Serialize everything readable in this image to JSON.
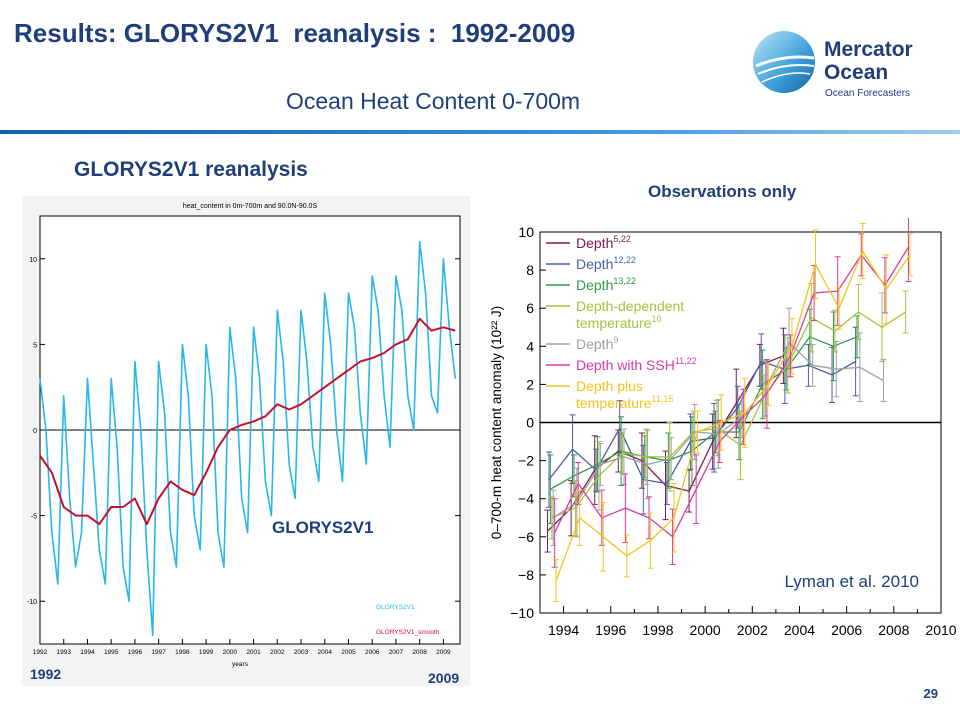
{
  "slide": {
    "title": "Results: GLORYS2V1  reanalysis :  1992-2009",
    "subtitle": "Ocean Heat Content  0-700m",
    "left_heading": "GLORYS2V1 reanalysis",
    "right_heading": "Observations only",
    "year_start": "1992",
    "year_end": "2009",
    "page_number": "29",
    "logo_line1": "Mercator",
    "logo_line2": "Ocean",
    "logo_tagline": "Ocean Forecasters"
  },
  "colors": {
    "title": "#1f3f7a",
    "glorys_raw": "#29b6e8",
    "glorys_smooth": "#c8102e"
  },
  "chart_data": [
    {
      "type": "line",
      "title": "heat_content in 0m-700m and 90.0N-90.0S",
      "xlabel": "years",
      "x_ticks": [
        "1992",
        "1993",
        "1994",
        "1995",
        "1996",
        "1997",
        "1998",
        "1999",
        "2000",
        "2001",
        "2002",
        "2003",
        "2004",
        "2005",
        "2006",
        "2007",
        "2008",
        "2009"
      ],
      "y_ticks": [
        "10",
        "5",
        "0",
        "-5",
        "-10"
      ],
      "xlim": [
        1992,
        2009.7
      ],
      "ylim": [
        -12.5,
        12.5
      ],
      "annotation": "GLORYS2V1",
      "legend": "bottom-right",
      "series": [
        {
          "name": "GLORYS2V1",
          "color": "#29b6e8",
          "x": [
            1992.0,
            1992.25,
            1992.5,
            1992.75,
            1993.0,
            1993.25,
            1993.5,
            1993.75,
            1994.0,
            1994.25,
            1994.5,
            1994.75,
            1995.0,
            1995.25,
            1995.5,
            1995.75,
            1996.0,
            1996.25,
            1996.5,
            1996.75,
            1997.0,
            1997.25,
            1997.5,
            1997.75,
            1998.0,
            1998.25,
            1998.5,
            1998.75,
            1999.0,
            1999.25,
            1999.5,
            1999.75,
            2000.0,
            2000.25,
            2000.5,
            2000.75,
            2001.0,
            2001.25,
            2001.5,
            2001.75,
            2002.0,
            2002.25,
            2002.5,
            2002.75,
            2003.0,
            2003.25,
            2003.5,
            2003.75,
            2004.0,
            2004.25,
            2004.5,
            2004.75,
            2005.0,
            2005.25,
            2005.5,
            2005.75,
            2006.0,
            2006.25,
            2006.5,
            2006.75,
            2007.0,
            2007.25,
            2007.5,
            2007.75,
            2008.0,
            2008.25,
            2008.5,
            2008.75,
            2009.0,
            2009.25,
            2009.5
          ],
          "y": [
            3,
            0,
            -6,
            -9,
            2,
            -4,
            -8,
            -6,
            3,
            -2,
            -7,
            -9,
            3,
            -1,
            -8,
            -10,
            4,
            0,
            -7,
            -12,
            4,
            1,
            -6,
            -8,
            5,
            2,
            -5,
            -7,
            5,
            2,
            -6,
            -8,
            6,
            3,
            -4,
            -6,
            6,
            3,
            -3,
            -5,
            7,
            4,
            -2,
            -4,
            7,
            4,
            -1,
            -3,
            8,
            5,
            0,
            -3,
            8,
            6,
            1,
            -2,
            9,
            7,
            2,
            -1,
            9,
            7,
            2,
            0,
            11,
            8,
            2,
            1,
            10,
            6,
            3
          ]
        },
        {
          "name": "GLORYS2V1_smooth",
          "color": "#c8102e",
          "x": [
            1992.0,
            1992.5,
            1993.0,
            1993.5,
            1994.0,
            1994.5,
            1995.0,
            1995.5,
            1996.0,
            1996.5,
            1997.0,
            1997.5,
            1998.0,
            1998.5,
            1999.0,
            1999.5,
            2000.0,
            2000.5,
            2001.0,
            2001.5,
            2002.0,
            2002.5,
            2003.0,
            2003.5,
            2004.0,
            2004.5,
            2005.0,
            2005.5,
            2006.0,
            2006.5,
            2007.0,
            2007.5,
            2008.0,
            2008.5,
            2009.0,
            2009.5
          ],
          "y": [
            -1.5,
            -2.5,
            -4.5,
            -5,
            -5,
            -5.5,
            -4.5,
            -4.5,
            -4,
            -5.5,
            -4,
            -3,
            -3.5,
            -3.8,
            -2.5,
            -1,
            0,
            0.3,
            0.5,
            0.8,
            1.5,
            1.2,
            1.5,
            2,
            2.5,
            3,
            3.5,
            4,
            4.2,
            4.5,
            5,
            5.3,
            6.5,
            5.8,
            6,
            5.8
          ]
        }
      ]
    },
    {
      "type": "line",
      "title": "",
      "ylabel": "0–700-m heat content anomaly (10²² J)",
      "x_ticks": [
        "1994",
        "1996",
        "1998",
        "2000",
        "2002",
        "2004",
        "2006",
        "2008",
        "2010"
      ],
      "y_ticks": [
        "10",
        "8",
        "6",
        "4",
        "2",
        "0",
        "−2",
        "−4",
        "−6",
        "−8",
        "−10"
      ],
      "xlim": [
        1993,
        2010
      ],
      "ylim": [
        -10,
        10
      ],
      "annotation": "Lyman et al. 2010",
      "legend": "top-left",
      "series": [
        {
          "name": "Depth5,22",
          "label_base": "Depth",
          "label_sup": "5,22",
          "color": "#7b1c4a",
          "x": [
            1993.5,
            1994.5,
            1995.5,
            1996.5,
            1997.5,
            1998.5,
            1999.5,
            2000.5,
            2001.5,
            2002.5,
            2003.5
          ],
          "y": [
            -5.7,
            -4.5,
            -2.5,
            -1.5,
            -2,
            -3.3,
            -3.6,
            -1,
            1,
            3,
            3.5
          ]
        },
        {
          "name": "Depth12,22",
          "label_base": "Depth",
          "label_sup": "12,22",
          "color": "#4b5fa6",
          "x": [
            1993.5,
            1994.5,
            1995.5,
            1996.5,
            1997.5,
            1998.5,
            1999.5,
            2000.5,
            2001.5,
            2002.5,
            2003.5,
            2004.5,
            2005.5,
            2006.5
          ],
          "y": [
            -3,
            -1.4,
            -2.5,
            -0.3,
            -3,
            -3.2,
            -1,
            -0.8,
            0.8,
            3.2,
            2.8,
            3,
            2.5,
            3.2
          ]
        },
        {
          "name": "Depth13,22",
          "label_base": "Depth",
          "label_sup": "13,22",
          "color": "#2e9a4a",
          "x": [
            1993.5,
            1994.5,
            1995.5,
            1996.5,
            1997.5,
            1998.5,
            1999.5,
            2000.5,
            2001.5,
            2002.5,
            2003.5,
            2004.5,
            2005.5,
            2006.5
          ],
          "y": [
            -3.5,
            -2.8,
            -2.2,
            -1.5,
            -1.8,
            -2,
            -1.5,
            -0.5,
            -0.5,
            2,
            2.8,
            4.5,
            4,
            4.5
          ]
        },
        {
          "name": "Depth-dependent temperature10",
          "label_base": "Depth-dependent temperature",
          "label_sup": "10",
          "color": "#a4c43a",
          "x": [
            1993.5,
            1994.5,
            1995.5,
            1996.5,
            1997.5,
            1998.5,
            1999.5,
            2000.5,
            2001.5,
            2002.5,
            2003.5,
            2004.5,
            2005.5,
            2006.5,
            2007.5,
            2008.5
          ],
          "y": [
            -5,
            -4.5,
            -2.8,
            -1.6,
            -1.8,
            -1.8,
            -0.5,
            -0.3,
            -1.2,
            1.4,
            3,
            5.5,
            4.8,
            5.8,
            5,
            5.8
          ]
        },
        {
          "name": "Depth9",
          "label_base": "Depth",
          "label_sup": "9",
          "color": "#a0a0a0",
          "x": [
            1993.5,
            1994.5,
            1995.5,
            1996.5,
            1997.5,
            1998.5,
            1999.5,
            2000.5,
            2001.5,
            2002.5,
            2003.5,
            2004.5,
            2005.5,
            2006.5,
            2007.5
          ],
          "y": [
            -5,
            -4.2,
            -2.2,
            -1.8,
            -2.2,
            -1.9,
            -0.5,
            -0.6,
            0.3,
            1.8,
            4.2,
            3,
            2.8,
            2.9,
            2.2
          ]
        },
        {
          "name": "Depth with SSH11,22",
          "label_base": "Depth with SSH",
          "label_sup": "11,22",
          "color": "#d83aa0",
          "x": [
            1993.5,
            1994.5,
            1995.5,
            1996.5,
            1997.5,
            1998.5,
            1999.5,
            2000.5,
            2001.5,
            2002.5,
            2003.5,
            2004.5,
            2005.5,
            2006.5,
            2007.5,
            2008.5
          ],
          "y": [
            -5.8,
            -3.2,
            -5,
            -4.5,
            -5,
            -6,
            -3.5,
            -1,
            0.3,
            1.5,
            3.5,
            6.8,
            6.9,
            8.8,
            7.2,
            9.2
          ]
        },
        {
          "name": "Depth plus temperature11,15",
          "label_base": "Depth plus temperature",
          "label_sup": "11,15",
          "color": "#f2c41a",
          "x": [
            1993.5,
            1994.5,
            1995.5,
            1996.5,
            1997.5,
            1998.5,
            1999.5,
            2000.5,
            2001.5,
            2002.5,
            2003.5,
            2004.5,
            2005.5,
            2006.5,
            2007.5,
            2008.5
          ],
          "y": [
            -8.3,
            -5,
            -6,
            -7,
            -6.2,
            -5,
            -0.5,
            0,
            0.5,
            2,
            4,
            8.3,
            6,
            9,
            7,
            8.8
          ]
        }
      ]
    }
  ]
}
